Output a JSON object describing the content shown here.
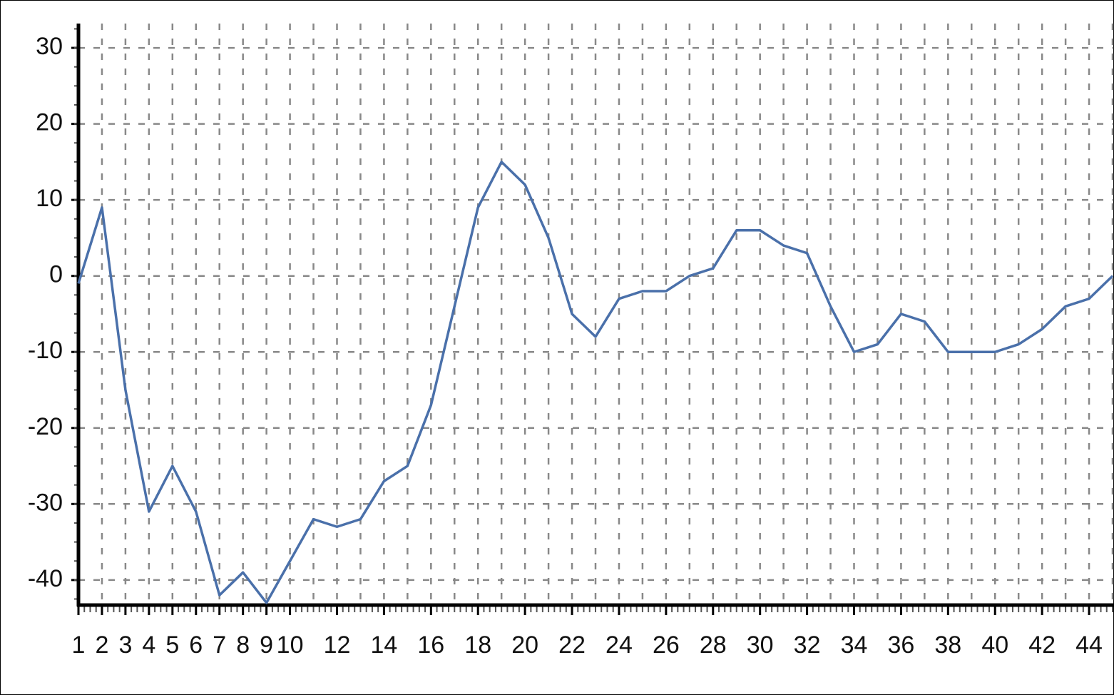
{
  "chart_data": {
    "type": "line",
    "x": [
      1,
      2,
      3,
      4,
      5,
      6,
      7,
      8,
      9,
      10,
      11,
      12,
      13,
      14,
      15,
      16,
      17,
      18,
      19,
      20,
      21,
      22,
      23,
      24,
      25,
      26,
      27,
      28,
      29,
      30,
      31,
      32,
      33,
      34,
      35,
      36,
      37,
      38,
      39,
      40,
      41,
      42,
      43,
      44,
      45
    ],
    "values": [
      -1,
      9,
      -15,
      -31,
      -25,
      -31,
      -42,
      -39,
      -43,
      -37.5,
      -32,
      -33,
      -32,
      -27,
      -25,
      -17,
      -4,
      9,
      15,
      12,
      5,
      -5,
      -8,
      -3,
      -2,
      -2,
      0,
      1,
      6,
      6,
      4,
      3,
      -4,
      -10,
      -9,
      -5,
      -6,
      -10,
      -10,
      -10,
      -9,
      -7,
      -4,
      -3,
      0
    ],
    "color": "#4a70aa",
    "xlim": [
      1,
      45
    ],
    "xticks": [
      1,
      2,
      3,
      4,
      5,
      6,
      7,
      8,
      9,
      10,
      12,
      14,
      16,
      18,
      20,
      22,
      24,
      26,
      28,
      30,
      32,
      34,
      36,
      38,
      40,
      42,
      44
    ],
    "ylim": [
      -43.3,
      33.2
    ],
    "yticks": [
      -40,
      -30,
      -20,
      -10,
      0,
      10,
      20,
      30
    ],
    "grid": true,
    "xgrid_step": 1,
    "yminor_step": 2.5
  }
}
